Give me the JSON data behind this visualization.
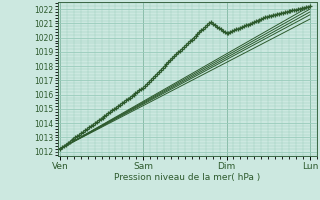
{
  "title": "Pression niveau de la mer( hPa )",
  "bg_color": "#cce8e0",
  "grid_color": "#99ccbb",
  "line_color": "#2d5a2d",
  "dot_color": "#2d5a2d",
  "ylim": [
    1011.7,
    1022.5
  ],
  "yticks": [
    1012,
    1013,
    1014,
    1015,
    1016,
    1017,
    1018,
    1019,
    1020,
    1021,
    1022
  ],
  "xtick_labels": [
    "Ven",
    "Sam",
    "Dim",
    "Lun"
  ],
  "xtick_positions": [
    0,
    72,
    144,
    216
  ],
  "xlim": [
    -2,
    222
  ]
}
